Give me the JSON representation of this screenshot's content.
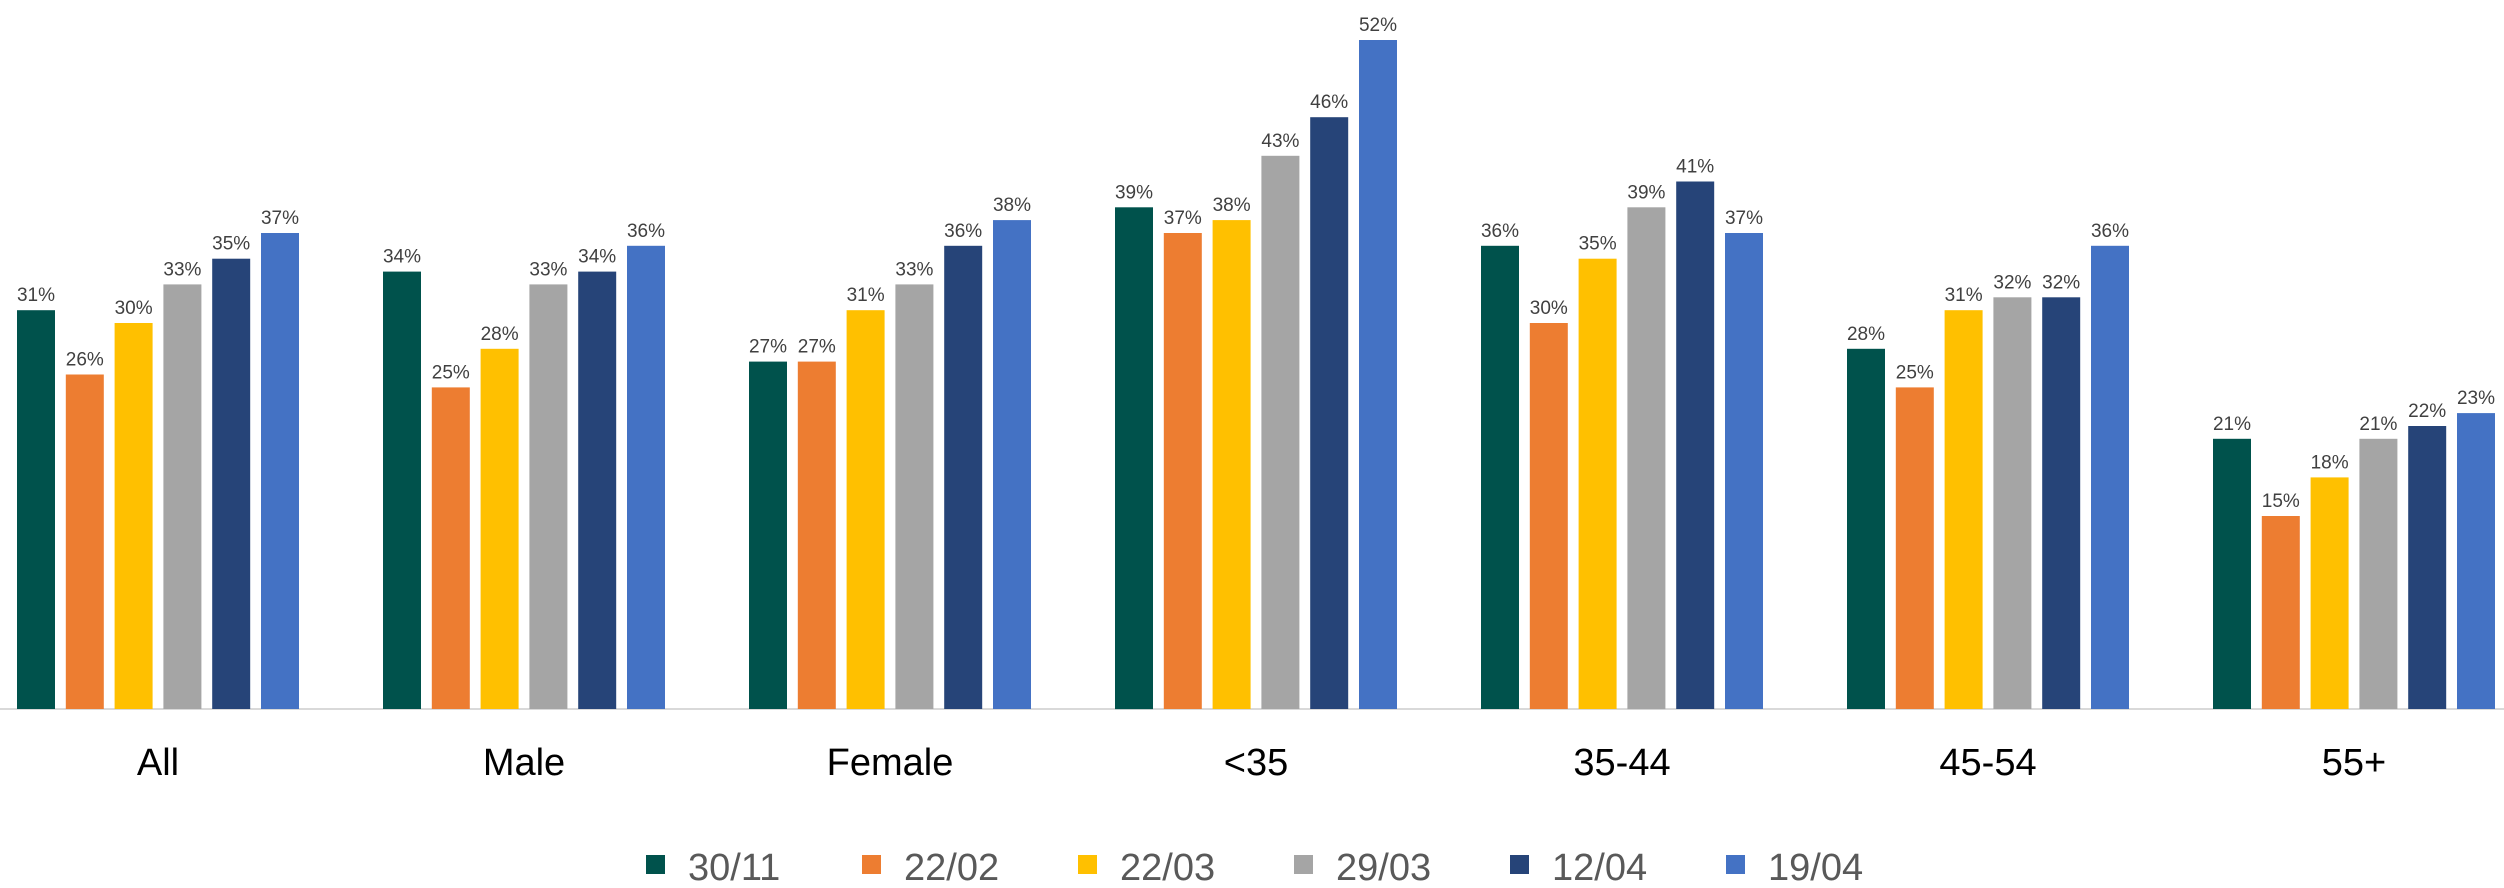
{
  "chart_data": {
    "type": "bar",
    "categories": [
      "All",
      "Male",
      "Female",
      "<35",
      "35-44",
      "45-54",
      "55+"
    ],
    "series": [
      {
        "name": "30/11",
        "color": "#00524C",
        "values": [
          31,
          34,
          27,
          39,
          36,
          28,
          21
        ]
      },
      {
        "name": "22/02",
        "color": "#ED7D31",
        "values": [
          26,
          25,
          27,
          37,
          30,
          25,
          15
        ]
      },
      {
        "name": "22/03",
        "color": "#FFC000",
        "values": [
          30,
          28,
          31,
          38,
          35,
          31,
          18
        ]
      },
      {
        "name": "29/03",
        "color": "#A5A5A5",
        "values": [
          33,
          33,
          33,
          43,
          39,
          32,
          21
        ]
      },
      {
        "name": "12/04",
        "color": "#264478",
        "values": [
          35,
          34,
          36,
          46,
          41,
          32,
          22
        ]
      },
      {
        "name": "19/04",
        "color": "#4472C4",
        "values": [
          37,
          36,
          38,
          52,
          37,
          36,
          23
        ]
      }
    ],
    "value_suffix": "%",
    "ylim": [
      0,
      52
    ],
    "grid": false,
    "legend_position": "bottom"
  }
}
